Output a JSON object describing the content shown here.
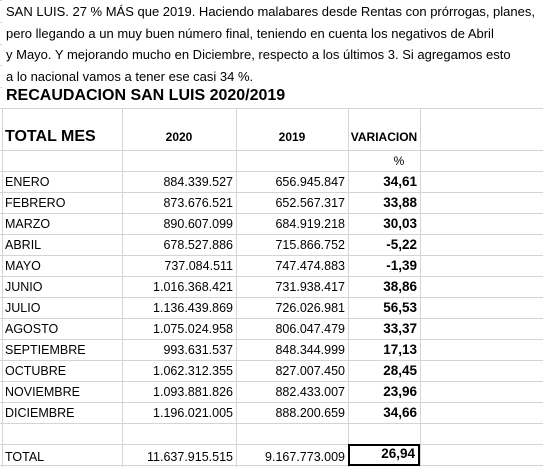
{
  "intro": [
    "SAN LUIS. 27 % MÁS que 2019. Haciendo malabares desde Rentas con prórrogas, planes,",
    "pero llegando a un muy buen número final, teniendo en cuenta los negativos de Abril",
    "y Mayo. Y mejorando mucho en Diciembre, respecto a los últimos 3. Si agregamos esto",
    "a lo nacional vamos a tener ese casi 34 %."
  ],
  "title": "RECAUDACION SAN LUIS  2020/2019",
  "table": {
    "header": [
      "TOTAL MES",
      "2020",
      "2019",
      "VARIACION"
    ],
    "subheader": "%",
    "rows": [
      [
        "ENERO",
        "884.339.527",
        "656.945.847",
        "34,61"
      ],
      [
        "FEBRERO",
        "873.676.521",
        "652.567.317",
        "33,88"
      ],
      [
        "MARZO",
        "890.607.099",
        "684.919.218",
        "30,03"
      ],
      [
        "ABRIL",
        "678.527.886",
        "715.866.752",
        "-5,22"
      ],
      [
        "MAYO",
        "737.084.511",
        "747.474.883",
        "-1,39"
      ],
      [
        "JUNIO",
        "1.016.368.421",
        "731.938.417",
        "38,86"
      ],
      [
        "JULIO",
        "1.136.439.869",
        "726.026.981",
        "56,53"
      ],
      [
        "AGOSTO",
        "1.075.024.958",
        "806.047.479",
        "33,37"
      ],
      [
        "SEPTIEMBRE",
        "993.631.537",
        "848.344.999",
        "17,13"
      ],
      [
        "OCTUBRE",
        "1.062.312.355",
        "827.007.450",
        "28,45"
      ],
      [
        "NOVIEMBRE",
        "1.093.881.826",
        "882.433.007",
        "23,96"
      ],
      [
        "DICIEMBRE",
        "1.196.021.005",
        "888.200.659",
        "34,66"
      ]
    ],
    "total": [
      "TOTAL",
      "11.637.915.515",
      "9.167.773.009",
      "26,94"
    ]
  }
}
